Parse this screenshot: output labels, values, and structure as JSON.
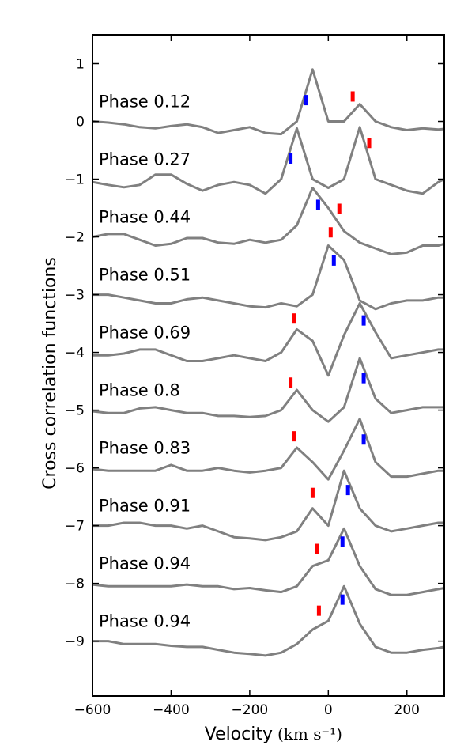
{
  "chart_data": {
    "type": "line",
    "xlabel": "Velocity",
    "xunit": "(km s⁻¹)",
    "ylabel": "Cross correlation functions",
    "xlim": [
      -600,
      295
    ],
    "ylim": [
      -9.95,
      1.5
    ],
    "xticks": [
      -600,
      -400,
      -200,
      0,
      200
    ],
    "xtick_labels": [
      "−600",
      "−400",
      "−200",
      "0",
      "200"
    ],
    "yticks": [
      1,
      0,
      -1,
      -2,
      -3,
      -4,
      -5,
      -6,
      -7,
      -8,
      -9
    ],
    "ytick_labels": [
      "1",
      "0",
      "−1",
      "−2",
      "−3",
      "−4",
      "−5",
      "−6",
      "−7",
      "−8",
      "−9"
    ],
    "line_color": "#808080",
    "primary_marker_color": "#0000ff",
    "secondary_marker_color": "#ff0000",
    "x": [
      -600,
      -560,
      -520,
      -480,
      -440,
      -400,
      -360,
      -320,
      -280,
      -240,
      -200,
      -160,
      -120,
      -80,
      -40,
      0,
      40,
      80,
      120,
      160,
      200,
      240,
      280,
      295
    ],
    "series": [
      {
        "label": "Phase 0.12",
        "offset": 0,
        "values": [
          0.0,
          -0.02,
          -0.05,
          -0.1,
          -0.12,
          -0.08,
          -0.05,
          -0.1,
          -0.2,
          -0.15,
          -0.1,
          -0.2,
          -0.22,
          0.0,
          0.9,
          0.0,
          0.0,
          0.3,
          0.0,
          -0.1,
          -0.15,
          -0.12,
          -0.14,
          -0.13
        ],
        "primary_v": -56,
        "secondary_v": 62
      },
      {
        "label": "Phase 0.27",
        "offset": -1,
        "values": [
          -0.05,
          -0.1,
          -0.14,
          -0.1,
          0.08,
          0.08,
          -0.08,
          -0.2,
          -0.1,
          -0.05,
          -0.1,
          -0.25,
          0.0,
          0.88,
          0.0,
          -0.15,
          0.0,
          0.9,
          0.0,
          -0.1,
          -0.2,
          -0.25,
          -0.05,
          0.0
        ],
        "primary_v": -96,
        "secondary_v": 104
      },
      {
        "label": "Phase 0.44",
        "offset": -2,
        "values": [
          0.0,
          0.05,
          0.05,
          -0.05,
          -0.15,
          -0.12,
          -0.02,
          -0.02,
          -0.1,
          -0.12,
          -0.05,
          -0.1,
          -0.05,
          0.2,
          0.85,
          0.5,
          0.1,
          -0.1,
          -0.2,
          -0.3,
          -0.27,
          -0.15,
          -0.15,
          -0.12
        ],
        "primary_v": -26,
        "secondary_v": 28
      },
      {
        "label": "Phase 0.51",
        "offset": -3,
        "values": [
          0.0,
          0.0,
          -0.05,
          -0.1,
          -0.15,
          -0.15,
          -0.08,
          -0.05,
          -0.1,
          -0.15,
          -0.2,
          -0.22,
          -0.15,
          -0.2,
          0.0,
          0.85,
          0.6,
          -0.1,
          -0.25,
          -0.15,
          -0.1,
          -0.1,
          -0.05,
          -0.05
        ],
        "primary_v": 14,
        "secondary_v": 6
      },
      {
        "label": "Phase 0.69",
        "offset": -4,
        "values": [
          -0.05,
          -0.05,
          -0.02,
          0.05,
          0.05,
          -0.05,
          -0.15,
          -0.15,
          -0.1,
          -0.05,
          -0.1,
          -0.15,
          0.0,
          0.4,
          0.2,
          -0.4,
          0.3,
          0.85,
          0.35,
          -0.1,
          -0.05,
          0.0,
          0.05,
          0.05
        ],
        "primary_v": 90,
        "secondary_v": -88
      },
      {
        "label": "Phase 0.8",
        "offset": -5,
        "values": [
          -0.02,
          -0.05,
          -0.05,
          0.03,
          0.05,
          0.0,
          -0.05,
          -0.05,
          -0.1,
          -0.1,
          -0.12,
          -0.1,
          0.0,
          0.35,
          0.0,
          -0.2,
          0.05,
          0.9,
          0.2,
          -0.05,
          0.0,
          0.05,
          0.05,
          0.05
        ],
        "primary_v": 90,
        "secondary_v": -96
      },
      {
        "label": "Phase 0.83",
        "offset": -6,
        "values": [
          -0.02,
          -0.05,
          -0.05,
          -0.05,
          -0.05,
          0.05,
          -0.05,
          -0.05,
          0.0,
          -0.05,
          -0.08,
          -0.05,
          0.0,
          0.35,
          0.1,
          -0.2,
          0.3,
          0.85,
          0.1,
          -0.15,
          -0.15,
          -0.1,
          -0.05,
          -0.05
        ],
        "primary_v": 90,
        "secondary_v": -88
      },
      {
        "label": "Phase 0.91",
        "offset": -7,
        "values": [
          0.0,
          0.0,
          0.05,
          0.05,
          0.0,
          0.0,
          -0.05,
          0.0,
          -0.1,
          -0.2,
          -0.22,
          -0.25,
          -0.2,
          -0.1,
          0.3,
          0.0,
          0.95,
          0.3,
          0.0,
          -0.1,
          -0.05,
          0.0,
          0.05,
          0.05
        ],
        "primary_v": 50,
        "secondary_v": -40
      },
      {
        "label": "Phase 0.94",
        "offset": -8,
        "values": [
          -0.02,
          -0.05,
          -0.05,
          -0.05,
          -0.05,
          -0.05,
          -0.02,
          -0.05,
          -0.05,
          -0.1,
          -0.08,
          -0.12,
          -0.15,
          -0.05,
          0.3,
          0.4,
          0.95,
          0.3,
          -0.1,
          -0.2,
          -0.2,
          -0.15,
          -0.1,
          -0.08
        ],
        "primary_v": 36,
        "secondary_v": -28
      },
      {
        "label": "Phase 0.94",
        "offset": -9,
        "values": [
          0.0,
          0.0,
          -0.05,
          -0.05,
          -0.05,
          -0.08,
          -0.1,
          -0.1,
          -0.15,
          -0.2,
          -0.22,
          -0.25,
          -0.2,
          -0.05,
          0.2,
          0.35,
          0.95,
          0.3,
          -0.1,
          -0.2,
          -0.2,
          -0.15,
          -0.12,
          -0.1
        ],
        "primary_v": 36,
        "secondary_v": -24
      }
    ]
  }
}
